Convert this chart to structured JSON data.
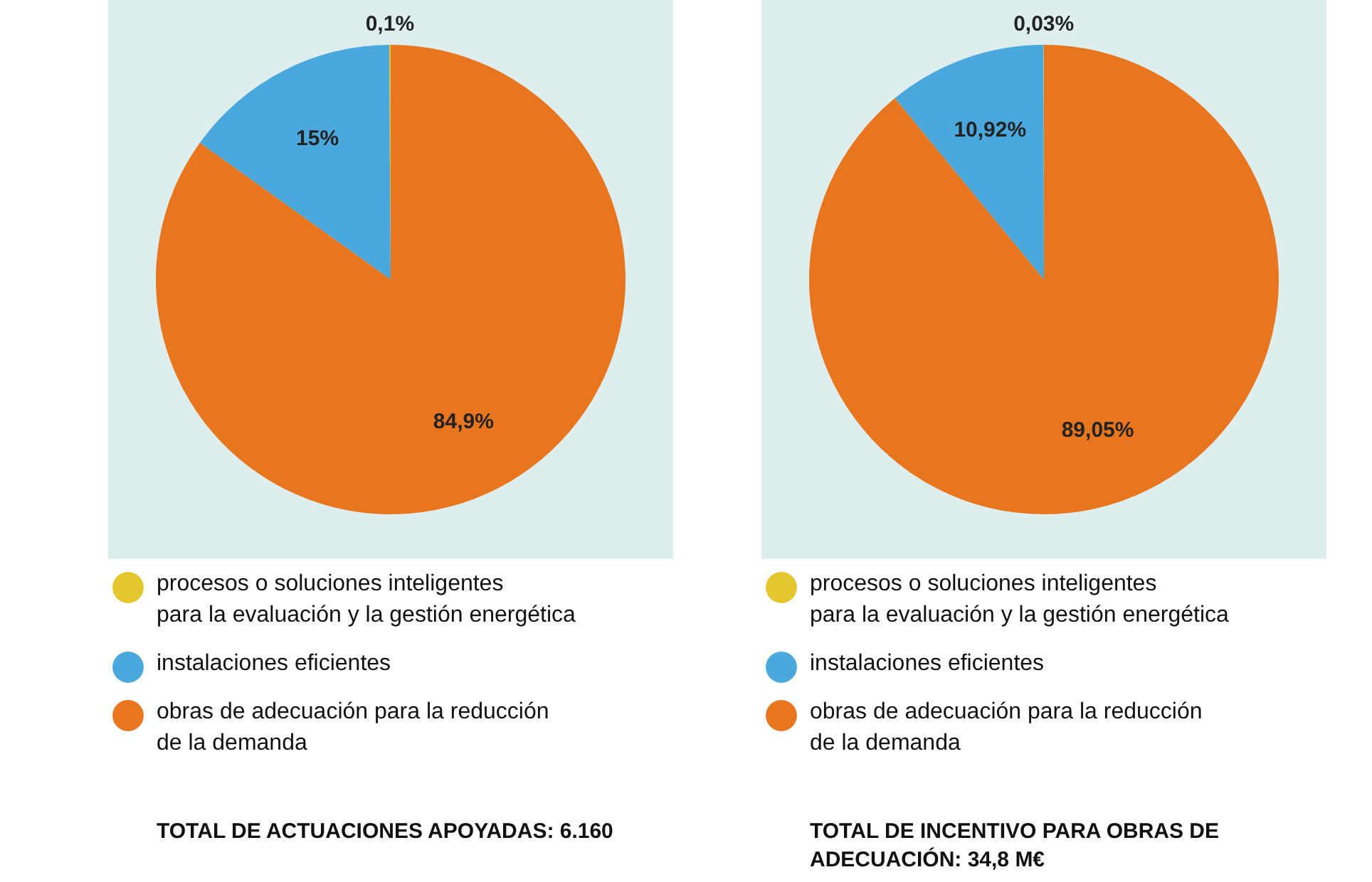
{
  "chart_data": [
    {
      "type": "pie",
      "categories": [
        "procesos o soluciones inteligentes para la evaluación y la gestión energética",
        "instalaciones eficientes",
        "obras de adecuación para la reducción de la demanda"
      ],
      "values": [
        0.1,
        15,
        84.9
      ],
      "value_labels": [
        "0,1%",
        "15%",
        "84,9%"
      ],
      "colors": [
        "#e6c62e",
        "#4aa8dc",
        "#e8761e"
      ],
      "legend": "bottom",
      "annotations": [
        "TOTAL DE ACTUACIONES APOYADAS: 6.160"
      ]
    },
    {
      "type": "pie",
      "categories": [
        "procesos o soluciones inteligentes para la evaluación y la gestión energética",
        "instalaciones eficientes",
        "obras de adecuación para la reducción de la demanda"
      ],
      "values": [
        0.03,
        10.92,
        89.05
      ],
      "value_labels": [
        "0,03%",
        "10,92%",
        "89,05%"
      ],
      "colors": [
        "#e6c62e",
        "#4aa8dc",
        "#e8761e"
      ],
      "legend": "bottom",
      "annotations": [
        "TOTAL DE INCENTIVO PARA OBRAS DE ADECUACIÓN: 34,8 M€"
      ]
    }
  ]
}
